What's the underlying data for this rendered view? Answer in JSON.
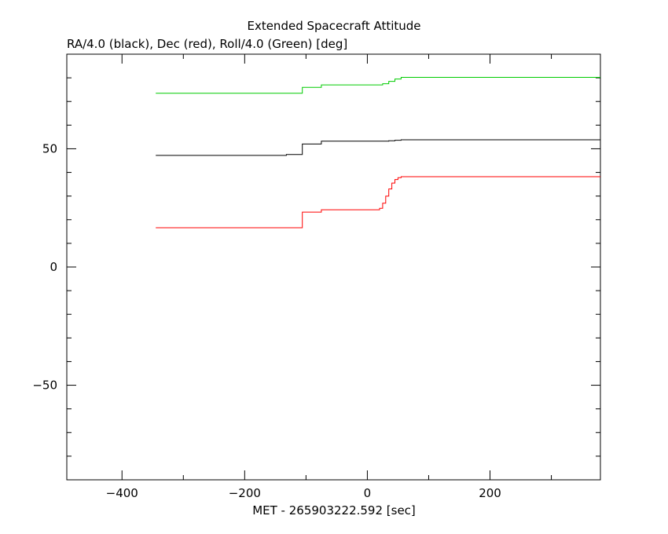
{
  "chart_data": {
    "type": "line",
    "title": "Extended Spacecraft Attitude",
    "subtitle": "RA/4.0 (black), Dec (red), Roll/4.0 (Green) [deg]",
    "xlabel": "MET - 265903222.592 [sec]",
    "ylabel": "",
    "xlim": [
      -490,
      380
    ],
    "ylim": [
      -90,
      90
    ],
    "x_ticks": [
      -400,
      -200,
      0,
      200
    ],
    "x_tick_labels": [
      "−400",
      "−200",
      "0",
      "200"
    ],
    "y_ticks": [
      -50,
      0,
      50
    ],
    "y_tick_labels": [
      "−50",
      "0",
      "50"
    ],
    "grid": false,
    "series": [
      {
        "color": "#000000",
        "x": [
          -345,
          -134,
          -132,
          -108,
          -106,
          -77,
          -75,
          25,
          35,
          45,
          55,
          380
        ],
        "y": [
          47.2,
          47.2,
          47.6,
          47.6,
          52.0,
          52.0,
          53.2,
          53.2,
          53.4,
          53.6,
          53.8,
          53.8
        ]
      },
      {
        "color": "#ff0000",
        "x": [
          -345,
          -108,
          -106,
          -77,
          -75,
          15,
          20,
          25,
          30,
          35,
          40,
          45,
          50,
          55,
          380
        ],
        "y": [
          16.6,
          16.6,
          23.2,
          23.2,
          24.2,
          24.2,
          24.8,
          27.0,
          30.0,
          33.0,
          35.5,
          37.0,
          37.8,
          38.2,
          38.2
        ]
      },
      {
        "color": "#00cc00",
        "x": [
          -345,
          -108,
          -106,
          -77,
          -75,
          15,
          25,
          35,
          45,
          55,
          380
        ],
        "y": [
          73.5,
          73.5,
          76.0,
          76.0,
          77.0,
          77.0,
          77.5,
          78.5,
          79.5,
          80.2,
          80.2
        ]
      }
    ]
  }
}
